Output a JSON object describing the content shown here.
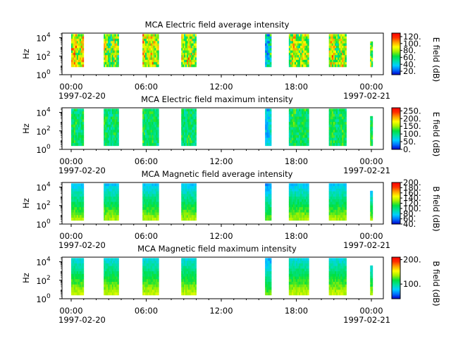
{
  "time_ticks": [
    "00:00",
    "06:00",
    "12:00",
    "18:00",
    "00:00"
  ],
  "date_start": "1997-02-20",
  "date_end": "1997-02-21",
  "y_ticks": [
    {
      "base": "10",
      "exp": "0"
    },
    {
      "base": "10",
      "exp": "2"
    },
    {
      "base": "10",
      "exp": "4"
    }
  ],
  "colormap": [
    "#0000c8",
    "#0070ff",
    "#00d0ff",
    "#00e0a0",
    "#00e040",
    "#a0f000",
    "#ffff00",
    "#ffa000",
    "#ff3000",
    "#ff0000"
  ],
  "chart_data": [
    {
      "type": "heatmap",
      "title": "MCA  Electric field average intensity",
      "ylabel": "Hz",
      "colorbar_label": "E field (dB)",
      "colorbar_range": [
        10,
        130
      ],
      "colorbar_ticks": [
        "20.",
        "40.",
        "60.",
        "80.",
        "100.",
        "120."
      ],
      "colorbar_tick_values": [
        20,
        40,
        60,
        80,
        100,
        120
      ],
      "x_range_hours": [
        0,
        24
      ],
      "ylim_log10": [
        0,
        4.5
      ],
      "intervals": [
        {
          "start": 0.0,
          "end": 1.0,
          "base": 88,
          "fmin": 0.85,
          "fmax": 4.4
        },
        {
          "start": 2.6,
          "end": 3.8,
          "base": 72,
          "fmin": 0.85,
          "fmax": 4.4
        },
        {
          "start": 5.7,
          "end": 7.0,
          "base": 84,
          "fmin": 0.85,
          "fmax": 4.4
        },
        {
          "start": 8.8,
          "end": 10.0,
          "base": 80,
          "fmin": 0.85,
          "fmax": 4.4
        },
        {
          "start": 15.5,
          "end": 16.0,
          "base": 48,
          "fmin": 0.85,
          "fmax": 4.4
        },
        {
          "start": 17.4,
          "end": 19.0,
          "base": 78,
          "fmin": 0.85,
          "fmax": 4.4
        },
        {
          "start": 20.6,
          "end": 22.0,
          "base": 78,
          "fmin": 0.85,
          "fmax": 4.4
        },
        {
          "start": 23.9,
          "end": 24.1,
          "base": 60,
          "fmin": 0.85,
          "fmax": 3.6
        }
      ]
    },
    {
      "type": "heatmap",
      "title": "MCA  Electric field maximum intensity",
      "ylabel": "Hz",
      "colorbar_label": "E field (dB)",
      "colorbar_range": [
        0,
        270
      ],
      "colorbar_ticks": [
        "0.",
        "50.",
        "100.",
        "150.",
        "200.",
        "250."
      ],
      "colorbar_tick_values": [
        0,
        50,
        100,
        150,
        200,
        250
      ],
      "x_range_hours": [
        0,
        24
      ],
      "ylim_log10": [
        0,
        4.5
      ],
      "intervals": [
        {
          "start": 0.0,
          "end": 1.0,
          "base": 108,
          "fmin": 0.4,
          "fmax": 4.4
        },
        {
          "start": 2.6,
          "end": 3.8,
          "base": 105,
          "fmin": 0.4,
          "fmax": 4.4
        },
        {
          "start": 5.7,
          "end": 7.0,
          "base": 110,
          "fmin": 0.4,
          "fmax": 4.4
        },
        {
          "start": 8.8,
          "end": 10.0,
          "base": 108,
          "fmin": 0.4,
          "fmax": 4.4
        },
        {
          "start": 15.5,
          "end": 16.0,
          "base": 70,
          "fmin": 0.4,
          "fmax": 4.4
        },
        {
          "start": 17.4,
          "end": 19.0,
          "base": 112,
          "fmin": 0.4,
          "fmax": 4.4
        },
        {
          "start": 20.6,
          "end": 22.0,
          "base": 112,
          "fmin": 0.4,
          "fmax": 4.4
        },
        {
          "start": 23.9,
          "end": 24.1,
          "base": 105,
          "fmin": 0.4,
          "fmax": 3.6
        }
      ]
    },
    {
      "type": "heatmap",
      "title": "MCA  Magnetic field average intensity",
      "ylabel": "Hz",
      "colorbar_label": "B field (dB)",
      "colorbar_range": [
        40,
        200
      ],
      "colorbar_ticks": [
        "40.",
        "60.",
        "80.",
        "100.",
        "120.",
        "140.",
        "160.",
        "180.",
        "200."
      ],
      "colorbar_tick_values": [
        40,
        60,
        80,
        100,
        120,
        140,
        160,
        180,
        200
      ],
      "x_range_hours": [
        0,
        24
      ],
      "ylim_log10": [
        0,
        4.5
      ],
      "intervals": [
        {
          "start": 0.0,
          "end": 1.0,
          "base": 100,
          "fmin": 0.4,
          "fmax": 4.4
        },
        {
          "start": 2.6,
          "end": 3.8,
          "base": 100,
          "fmin": 0.4,
          "fmax": 4.4
        },
        {
          "start": 5.7,
          "end": 7.0,
          "base": 100,
          "fmin": 0.4,
          "fmax": 4.4
        },
        {
          "start": 8.8,
          "end": 10.0,
          "base": 100,
          "fmin": 0.4,
          "fmax": 4.4
        },
        {
          "start": 15.5,
          "end": 16.0,
          "base": 90,
          "fmin": 0.4,
          "fmax": 4.4
        },
        {
          "start": 17.4,
          "end": 19.0,
          "base": 100,
          "fmin": 0.4,
          "fmax": 4.4
        },
        {
          "start": 20.6,
          "end": 22.0,
          "base": 100,
          "fmin": 0.4,
          "fmax": 4.4
        },
        {
          "start": 23.9,
          "end": 24.1,
          "base": 98,
          "fmin": 0.4,
          "fmax": 3.6
        }
      ]
    },
    {
      "type": "heatmap",
      "title": "MCA  Magnetic field maximum intensity",
      "ylabel": "Hz",
      "colorbar_label": "B field (dB)",
      "colorbar_range": [
        40,
        210
      ],
      "colorbar_ticks": [
        "100.",
        "200."
      ],
      "colorbar_tick_values": [
        100,
        200
      ],
      "x_range_hours": [
        0,
        24
      ],
      "ylim_log10": [
        0,
        4.5
      ],
      "intervals": [
        {
          "start": 0.0,
          "end": 1.0,
          "base": 110,
          "fmin": 0.4,
          "fmax": 4.4
        },
        {
          "start": 2.6,
          "end": 3.8,
          "base": 110,
          "fmin": 0.4,
          "fmax": 4.4
        },
        {
          "start": 5.7,
          "end": 7.0,
          "base": 110,
          "fmin": 0.4,
          "fmax": 4.4
        },
        {
          "start": 8.8,
          "end": 10.0,
          "base": 110,
          "fmin": 0.4,
          "fmax": 4.4
        },
        {
          "start": 15.5,
          "end": 16.0,
          "base": 95,
          "fmin": 0.4,
          "fmax": 4.4
        },
        {
          "start": 17.4,
          "end": 19.0,
          "base": 110,
          "fmin": 0.4,
          "fmax": 4.4
        },
        {
          "start": 20.6,
          "end": 22.0,
          "base": 110,
          "fmin": 0.4,
          "fmax": 4.4
        },
        {
          "start": 23.9,
          "end": 24.1,
          "base": 108,
          "fmin": 0.4,
          "fmax": 3.6
        }
      ]
    }
  ]
}
